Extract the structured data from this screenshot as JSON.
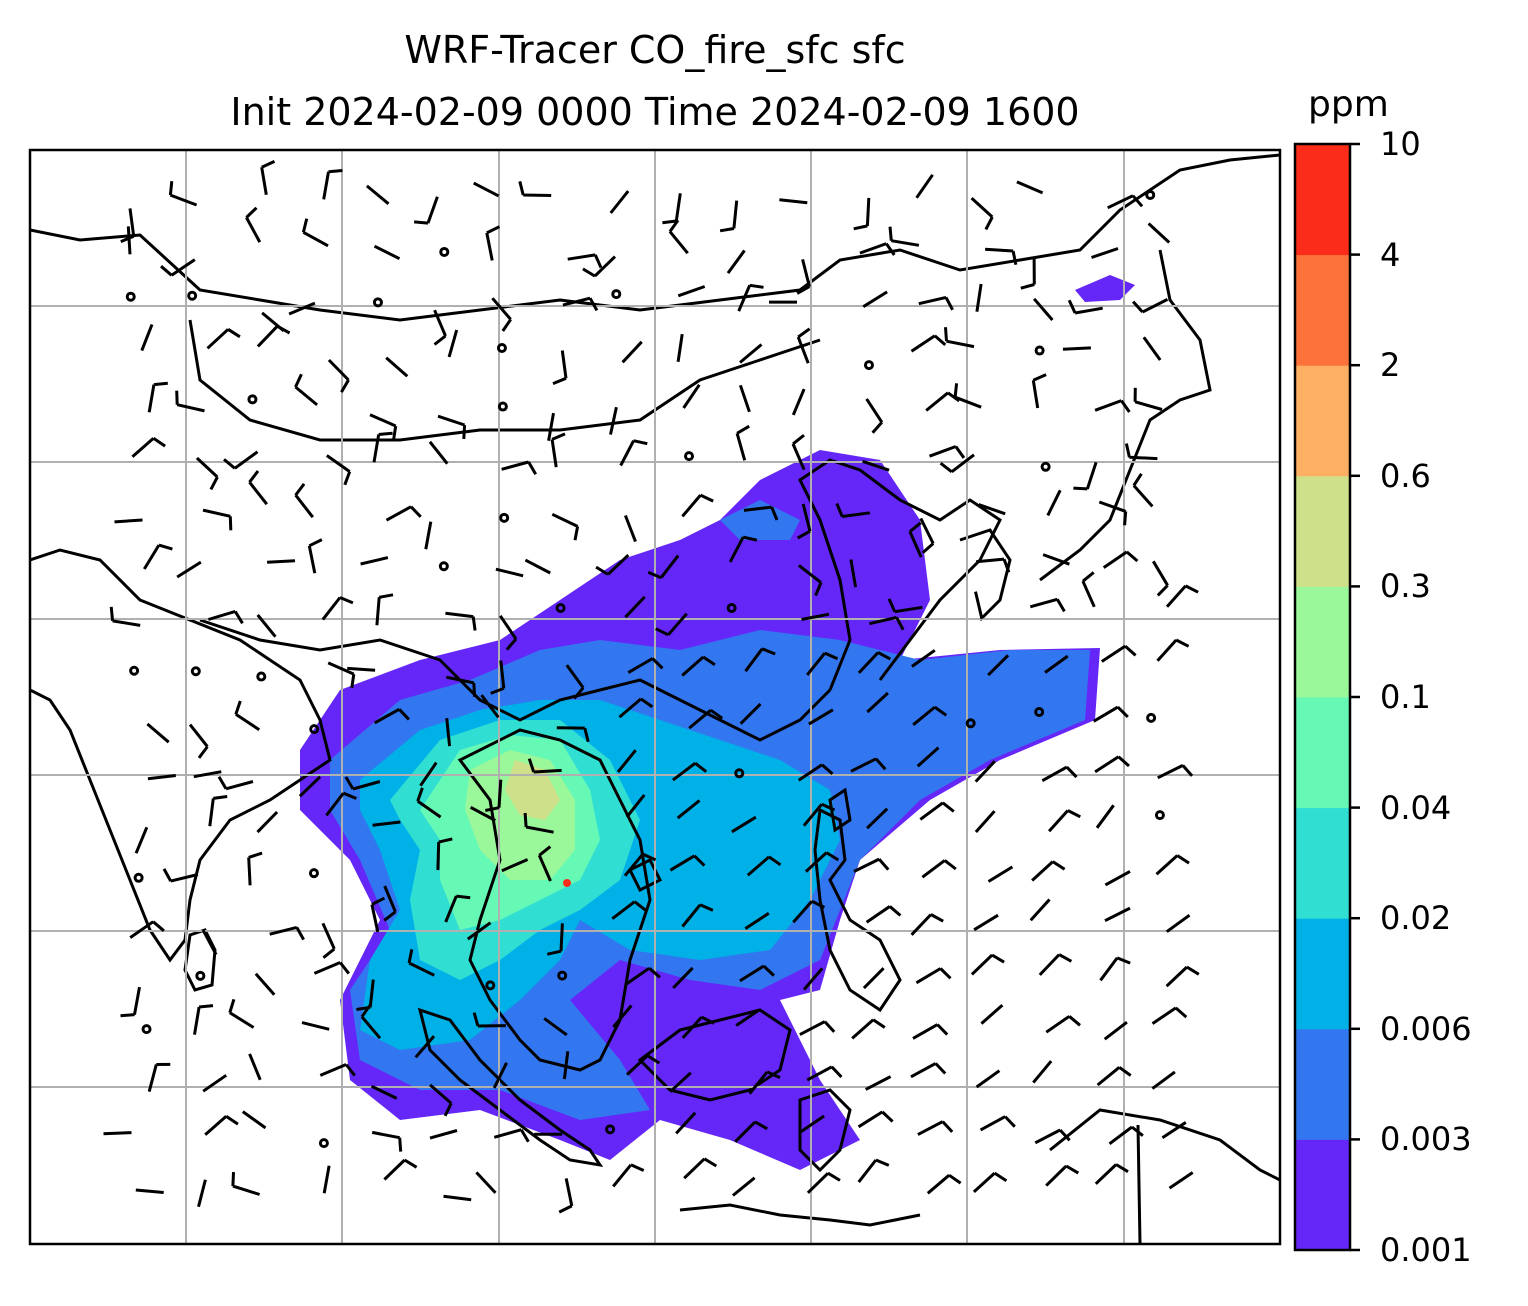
{
  "title": {
    "line1": "WRF-Tracer CO_fire_sfc sfc",
    "line2": "Init 2024-02-09 0000 Time 2024-02-09 1600"
  },
  "colorbar": {
    "unit": "ppm",
    "levels": [
      "0.001",
      "0.003",
      "0.006",
      "0.02",
      "0.04",
      "0.1",
      "0.3",
      "0.6",
      "2",
      "4",
      "10"
    ],
    "colors": [
      "#6527f7",
      "#3277f0",
      "#00b1e8",
      "#31dfd2",
      "#66f9b6",
      "#9af79a",
      "#cfe08a",
      "#fdb064",
      "#fd713b",
      "#fb2c1a"
    ]
  },
  "map": {
    "projection_grid": "on",
    "field": "CO_fire_sfc",
    "overlay": "wind barbs"
  }
}
